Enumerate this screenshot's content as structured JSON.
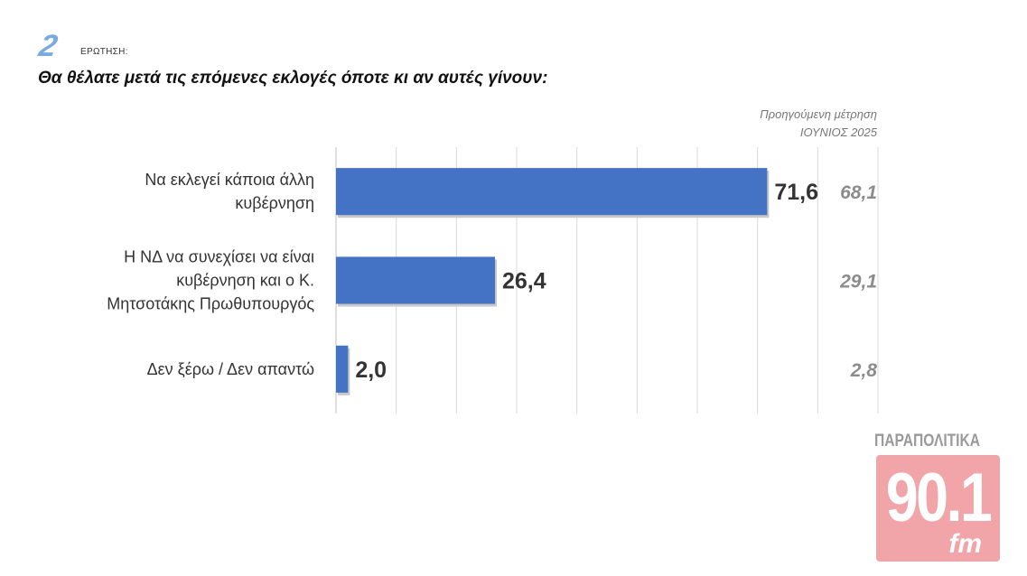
{
  "header": {
    "question_number": "2",
    "question_word": "ΕΡΩΤΗΣΗ:",
    "question_text": "Θα θέλατε μετά τις επόμενες εκλογές όποτε κι αν αυτές γίνουν:"
  },
  "previous": {
    "label_line1": "Προηγούμενη μέτρηση",
    "label_line2": "ΙΟΥΝΙΟΣ 2025"
  },
  "chart_data": {
    "type": "bar",
    "orientation": "horizontal",
    "title": "",
    "xlim": [
      0,
      90
    ],
    "grid": true,
    "bar_color": "#4472c4",
    "categories": [
      [
        "Να εκλεγεί κάποια άλλη",
        "κυβέρνηση"
      ],
      [
        "Η ΝΔ να συνεχίσει να είναι",
        "κυβέρνηση και ο Κ.",
        "Μητσοτάκης Πρωθυπουργός"
      ],
      [
        "Δεν ξέρω / Δεν απαντώ"
      ]
    ],
    "series": [
      {
        "values": [
          71.6,
          26.4,
          2.0
        ],
        "value_labels": [
          "71,6",
          "26,4",
          "2,0"
        ]
      }
    ],
    "previous_values": [
      68.1,
      29.1,
      2.8
    ],
    "previous_labels": [
      "68,1",
      "29,1",
      "2,8"
    ]
  },
  "logo": {
    "top_text": "ΠΑΡΑΠΟΛΙΤΙΚΑ",
    "number": "90.1",
    "suffix": "fm",
    "color": "#f2a5a8"
  }
}
